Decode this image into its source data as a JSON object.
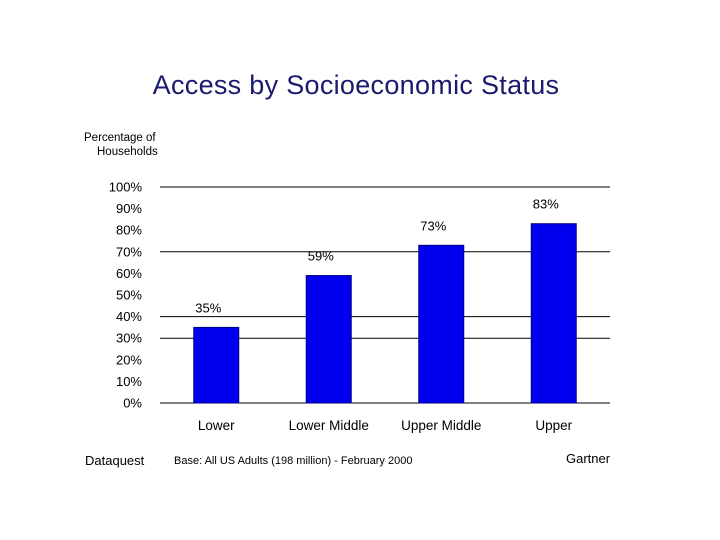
{
  "title": "Access by Socioeconomic Status",
  "footer": {
    "source": "Dataquest",
    "base": "Base: All US Adults (198 million) - February 2000",
    "brand": "Gartner"
  },
  "colors": {
    "bar": "#0000ee",
    "bar_edge": "#000080",
    "grid": "#000000",
    "title": "#1a1a6e"
  },
  "chart_data": {
    "type": "bar",
    "title": "Access by Socioeconomic Status",
    "ylabel_lines": [
      "Percentage of",
      "Households"
    ],
    "xlabel": "",
    "categories": [
      "Lower",
      "Lower Middle",
      "Upper Middle",
      "Upper"
    ],
    "values": [
      35,
      59,
      73,
      83
    ],
    "data_labels": [
      "35%",
      "59%",
      "73%",
      "83%"
    ],
    "ylim": [
      0,
      100
    ],
    "yticks": [
      0,
      10,
      20,
      30,
      40,
      50,
      60,
      70,
      80,
      90,
      100
    ],
    "ytick_labels": [
      "0%",
      "10%",
      "20%",
      "30%",
      "40%",
      "50%",
      "60%",
      "70%",
      "80%",
      "90%",
      "100%"
    ],
    "grid": true,
    "gridlines_at": [
      0,
      30,
      40,
      70,
      100
    ],
    "legend": "none"
  }
}
